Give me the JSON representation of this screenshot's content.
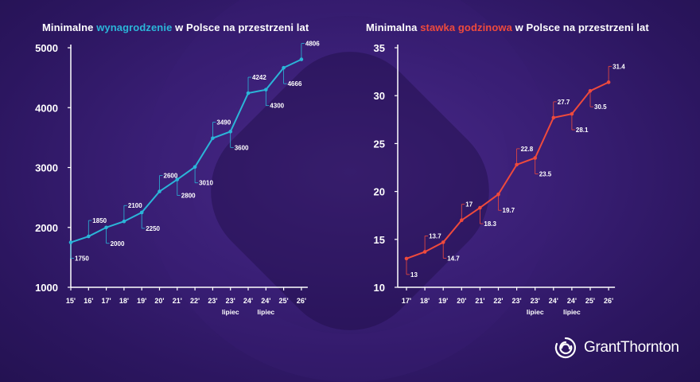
{
  "charts": {
    "left": {
      "title_before": "Minimalne ",
      "title_highlight": "wynagrodzenie",
      "title_after": " w Polsce na przestrzeni lat",
      "highlight_color": "#2bb5d8"
    },
    "right": {
      "title_before": "Minimalna ",
      "title_highlight": "stawka godzinowa",
      "title_after": " w Polsce na przestrzeni lat",
      "highlight_color": "#ef4a3c"
    }
  },
  "brand": {
    "name": "GrantThornton"
  },
  "chart_data": [
    {
      "type": "line",
      "title": "Minimalne wynagrodzenie w Polsce na przestrzeni lat",
      "color": "#2bb5d8",
      "ylim": [
        1000,
        5000
      ],
      "yticks": [
        1000,
        2000,
        3000,
        4000,
        5000
      ],
      "categories": [
        "15'",
        "16'",
        "17'",
        "18'",
        "19'",
        "20'",
        "21'",
        "22'",
        "23'",
        "23'",
        "24'",
        "24'",
        "25'",
        "26'"
      ],
      "sublabels": [
        "",
        "",
        "",
        "",
        "",
        "",
        "",
        "",
        "",
        "lipiec",
        "",
        "lipiec",
        "",
        ""
      ],
      "values": [
        1750,
        1850,
        2000,
        2100,
        2250,
        2600,
        2800,
        3010,
        3490,
        3600,
        4242,
        4300,
        4666,
        4806
      ],
      "labels": [
        "1750",
        "1850",
        "2000",
        "2100",
        "2250",
        "2600",
        "2800",
        "3010",
        "3490",
        "3600",
        "4242",
        "4300",
        "4666",
        "4806"
      ],
      "label_pos": [
        "below",
        "above",
        "below",
        "above",
        "below",
        "above",
        "below",
        "below",
        "above",
        "below",
        "above",
        "below",
        "below",
        "above"
      ]
    },
    {
      "type": "line",
      "title": "Minimalna stawka godzinowa w Polsce na przestrzeni lat",
      "color": "#ef4a3c",
      "ylim": [
        10,
        35
      ],
      "yticks": [
        10,
        15,
        20,
        25,
        30,
        35
      ],
      "categories": [
        "17'",
        "18'",
        "19'",
        "20'",
        "21'",
        "22'",
        "23'",
        "23'",
        "24'",
        "24'",
        "25'",
        "26'"
      ],
      "sublabels": [
        "",
        "",
        "",
        "",
        "",
        "",
        "",
        "lipiec",
        "",
        "lipiec",
        "",
        ""
      ],
      "values": [
        13,
        13.7,
        14.7,
        17,
        18.3,
        19.7,
        22.8,
        23.5,
        27.7,
        28.1,
        30.5,
        31.4
      ],
      "labels": [
        "13",
        "13.7",
        "14.7",
        "17",
        "18.3",
        "19.7",
        "22.8",
        "23.5",
        "27.7",
        "28.1",
        "30.5",
        "31.4"
      ],
      "label_pos": [
        "below",
        "above",
        "below",
        "above",
        "below",
        "below",
        "above",
        "below",
        "above",
        "below",
        "below",
        "above"
      ]
    }
  ]
}
